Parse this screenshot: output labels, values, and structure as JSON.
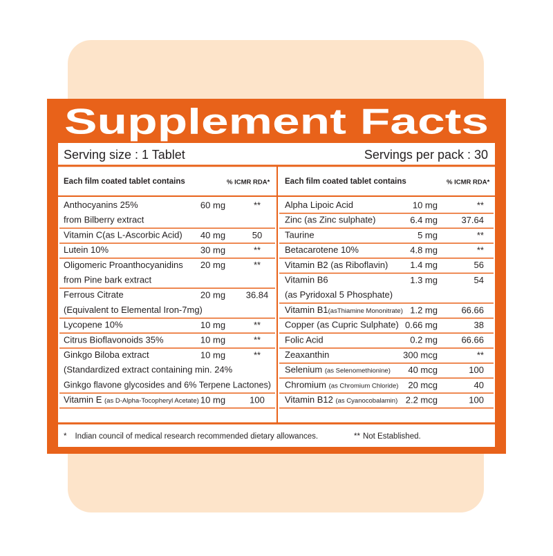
{
  "header": {
    "title": "Supplement Facts",
    "serving_size": "Serving size : 1 Tablet",
    "servings_per_pack": "Servings per pack : 30"
  },
  "columns": [
    {
      "heading": "Each film coated tablet contains",
      "rda_heading": "% ICMR RDA*",
      "items": [
        {
          "lines": [
            "Anthocyanins 25%",
            "from Bilberry extract"
          ],
          "amount": "60 mg",
          "rda": "**"
        },
        {
          "lines": [
            "Vitamin C(as L-Ascorbic Acid)"
          ],
          "amount": "40 mg",
          "rda": "50"
        },
        {
          "lines": [
            "Lutein 10%"
          ],
          "amount": "30 mg",
          "rda": "**"
        },
        {
          "lines": [
            "Oligomeric Proanthocyanidins",
            "from Pine bark extract"
          ],
          "amount": "20 mg",
          "rda": "**"
        },
        {
          "lines": [
            "Ferrous Citrate",
            "(Equivalent to Elemental Iron-7mg)"
          ],
          "amount": "20 mg",
          "rda": "36.84"
        },
        {
          "lines": [
            "Lycopene 10%"
          ],
          "amount": "10 mg",
          "rda": "**"
        },
        {
          "lines": [
            "Citrus Bioflavonoids 35%"
          ],
          "amount": "10 mg",
          "rda": "**"
        },
        {
          "lines": [
            "Ginkgo Biloba extract",
            "(Standardized extract containing min. 24%",
            "Ginkgo flavone glycosides and 6% Terpene Lactones)"
          ],
          "amount": "10 mg",
          "rda": "**"
        },
        {
          "lines": [
            "Vitamin E "
          ],
          "note": "(as D-Alpha-Tocopheryl Acetate)",
          "amount": "10 mg",
          "rda": "100"
        }
      ]
    },
    {
      "heading": "Each film coated tablet contains",
      "rda_heading": "% ICMR RDA*",
      "items": [
        {
          "lines": [
            "Alpha Lipoic Acid"
          ],
          "amount": "10 mg",
          "rda": "**"
        },
        {
          "lines": [
            "Zinc (as Zinc sulphate)"
          ],
          "amount": "6.4 mg",
          "rda": "37.64"
        },
        {
          "lines": [
            "Taurine"
          ],
          "amount": "5 mg",
          "rda": "**"
        },
        {
          "lines": [
            "Betacarotene 10%"
          ],
          "amount": "4.8 mg",
          "rda": "**"
        },
        {
          "lines": [
            "Vitamin B2 (as Riboflavin)"
          ],
          "amount": "1.4 mg",
          "rda": "56"
        },
        {
          "lines": [
            "Vitamin B6",
            "(as Pyridoxal 5 Phosphate)"
          ],
          "amount": "1.3 mg",
          "rda": "54"
        },
        {
          "lines": [
            "Vitamin B1"
          ],
          "note": "(asThiamine Mononitrate)",
          "amount": "1.2 mg",
          "rda": "66.66"
        },
        {
          "lines": [
            "Copper (as Cupric Sulphate)"
          ],
          "amount": "0.66 mg",
          "rda": "38"
        },
        {
          "lines": [
            "Folic Acid"
          ],
          "amount": "0.2 mg",
          "rda": "66.66"
        },
        {
          "lines": [
            "Zeaxanthin"
          ],
          "amount": "300 mcg",
          "rda": "**"
        },
        {
          "lines": [
            "Selenium "
          ],
          "note": "(as Selenomethionine)",
          "amount": "40 mcg",
          "rda": "100"
        },
        {
          "lines": [
            "Chromium "
          ],
          "note": "(as Chromium Chloride)",
          "amount": "20 mcg",
          "rda": "40"
        },
        {
          "lines": [
            "Vitamin B12 "
          ],
          "note": "(as Cyanocobalamin)",
          "amount": "2.2 mcg",
          "rda": "100"
        }
      ]
    }
  ],
  "footnotes": [
    {
      "mark": "*",
      "text": "Indian council of medical research recommended dietary allowances."
    },
    {
      "mark": "**",
      "text": "Not Established."
    }
  ]
}
